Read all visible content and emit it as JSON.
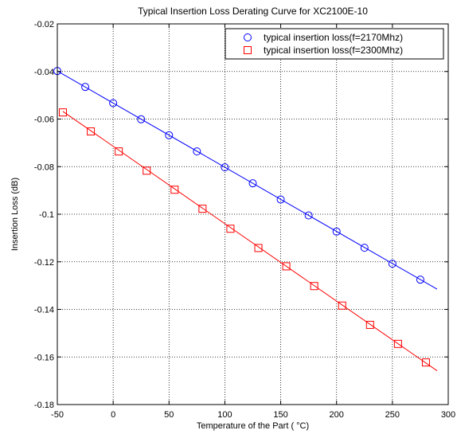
{
  "chart_data": {
    "type": "line",
    "title": "Typical Insertion Loss Derating Curve for XC2100E-10",
    "xlabel": "Temperature of the Part ( °C)",
    "ylabel": "Insertion Loss (dB)",
    "xlim": [
      -50,
      300
    ],
    "ylim": [
      -0.18,
      -0.02
    ],
    "xticks": [
      -50,
      0,
      50,
      100,
      150,
      200,
      250,
      300
    ],
    "yticks": [
      -0.02,
      -0.04,
      -0.06,
      -0.08,
      -0.1,
      -0.12,
      -0.14,
      -0.16,
      -0.18
    ],
    "xtick_labels": [
      "-50",
      "0",
      "50",
      "100",
      "150",
      "200",
      "250",
      "300"
    ],
    "ytick_labels": [
      "-0.02",
      "-0.04",
      "-0.06",
      "-0.08",
      "-0.1",
      "-0.12",
      "-0.14",
      "-0.16",
      "-0.18"
    ],
    "grid": true,
    "grid_style": "dotted",
    "legend_position": "top-right",
    "series": [
      {
        "name": "typical insertion loss(f=2170Mhz)",
        "color": "#0000ff",
        "marker": "circle",
        "line": {
          "x": [
            -50,
            290
          ],
          "y": [
            -0.0398,
            -0.1315
          ]
        },
        "points": {
          "x": [
            -50,
            -25,
            0,
            25,
            50,
            75,
            100,
            125,
            150,
            175,
            200,
            225,
            250,
            275
          ],
          "y": [
            -0.0398,
            -0.0465,
            -0.0533,
            -0.0601,
            -0.0668,
            -0.0736,
            -0.0803,
            -0.087,
            -0.0938,
            -0.1005,
            -0.1073,
            -0.1141,
            -0.1208,
            -0.1275
          ]
        }
      },
      {
        "name": "typical insertion loss(f=2300Mhz)",
        "color": "#ff0000",
        "marker": "square",
        "line": {
          "x": [
            -45,
            290
          ],
          "y": [
            -0.0568,
            -0.1658
          ]
        },
        "points": {
          "x": [
            -45,
            -20,
            5,
            30,
            55,
            80,
            105,
            130,
            155,
            180,
            205,
            230,
            255,
            280
          ],
          "y": [
            -0.0572,
            -0.0652,
            -0.0736,
            -0.0817,
            -0.0897,
            -0.0977,
            -0.1061,
            -0.1142,
            -0.1219,
            -0.1302,
            -0.1384,
            -0.1465,
            -0.1545,
            -0.1623
          ]
        }
      }
    ]
  }
}
